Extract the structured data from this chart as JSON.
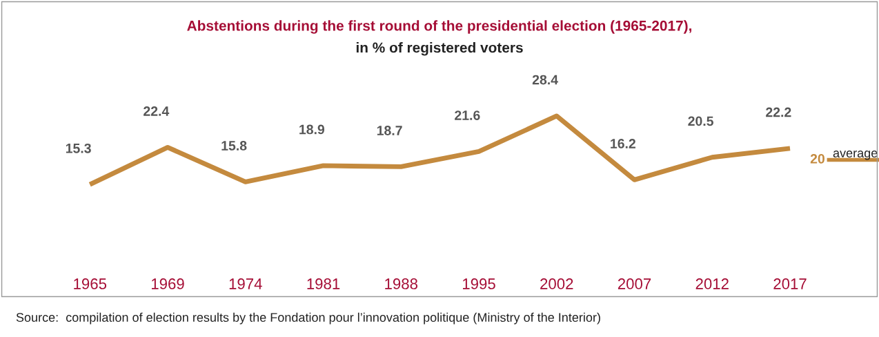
{
  "chart_data": {
    "type": "line",
    "title": "Abstentions during the first round of the presidential election (1965-2017),",
    "subtitle": "in % of registered voters",
    "categories": [
      "1965",
      "1969",
      "1974",
      "1981",
      "1988",
      "1995",
      "2002",
      "2007",
      "2012",
      "2017"
    ],
    "series": [
      {
        "color": "#c48a3e",
        "values": [
          15.3,
          22.4,
          15.8,
          18.9,
          18.7,
          21.6,
          28.4,
          16.2,
          20.5,
          22.2
        ]
      }
    ],
    "data_labels": true,
    "ref_lines": [
      {
        "axis": "y",
        "value": 20,
        "label": "average",
        "color": "#c48a3e",
        "line_style": "solid"
      }
    ],
    "annotations": [
      "20",
      "Source:  compilation of election results by the Fondation pour l’innovation politique (Ministry of the Interior)"
    ],
    "grid": false,
    "legend": false,
    "marker": "none",
    "line_style": "solid",
    "tick_labels": "x"
  }
}
